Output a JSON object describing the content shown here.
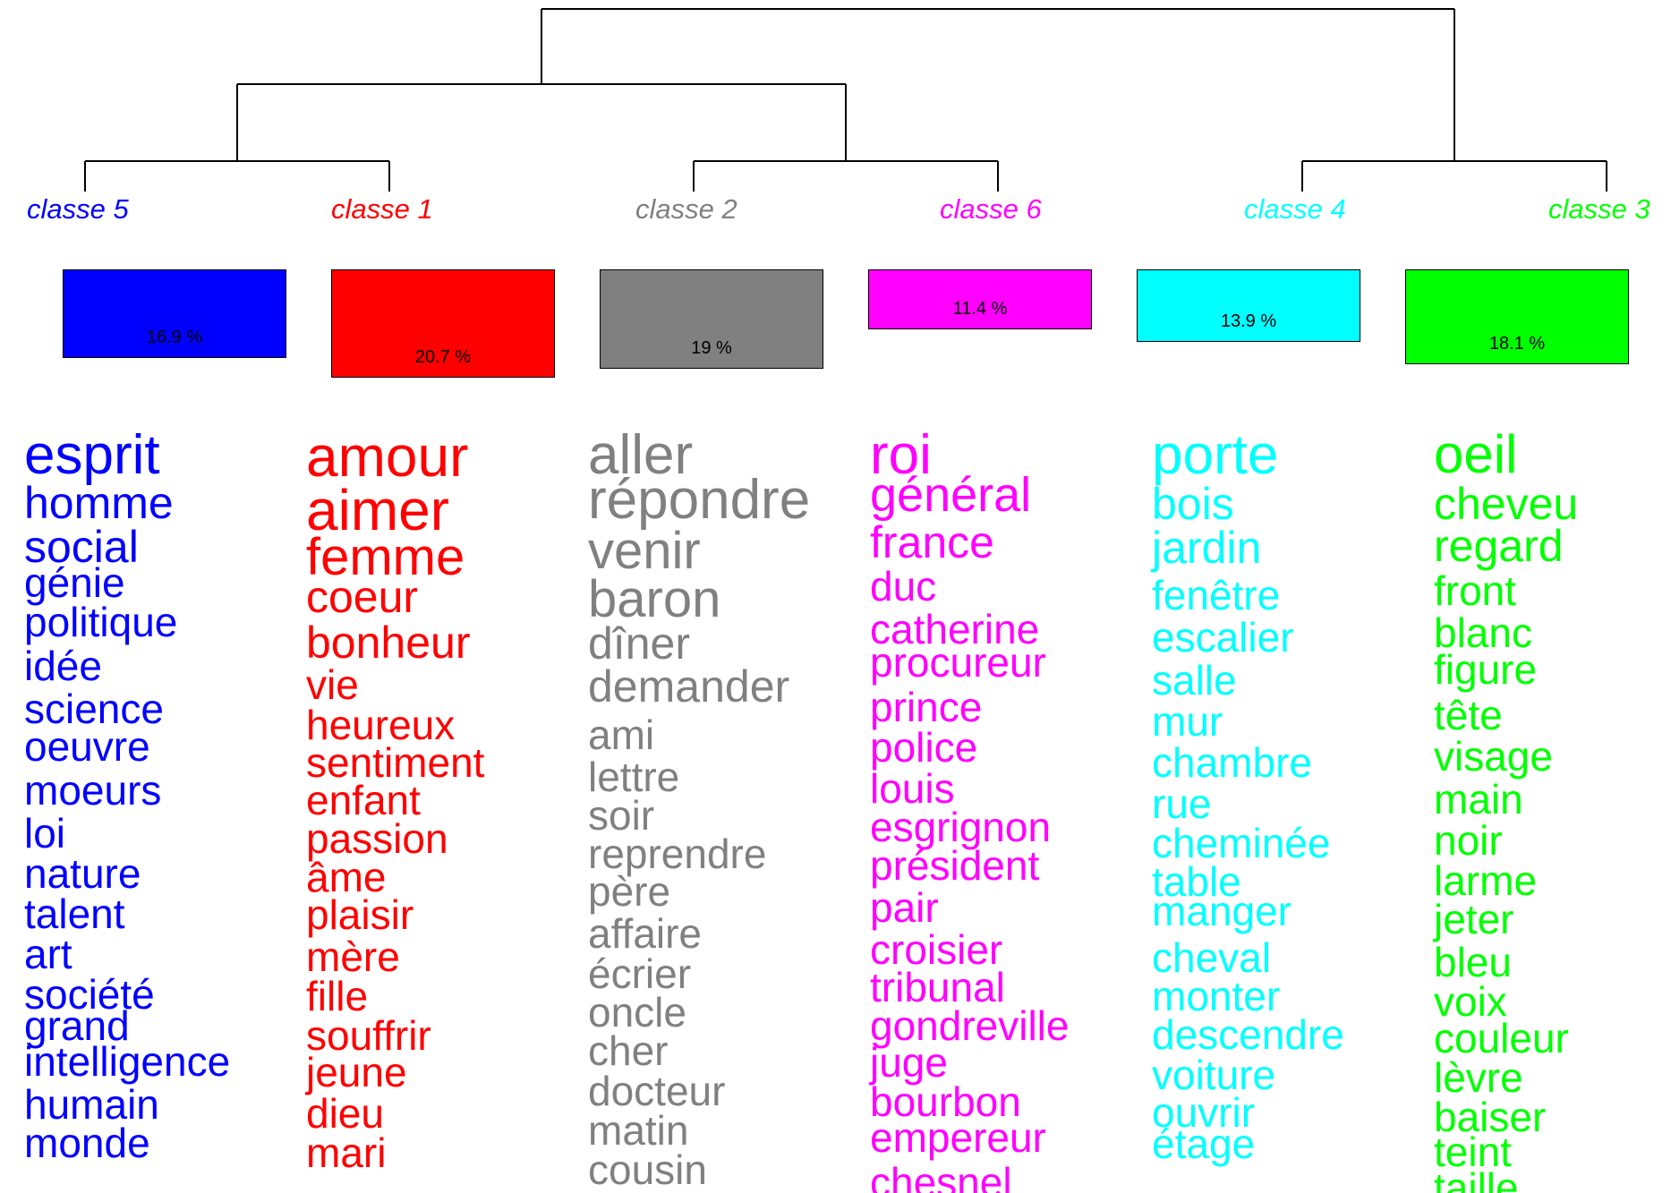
{
  "classes": [
    {
      "id": "c5",
      "label": "classe  5",
      "percent": "16.9 %",
      "share": 16.9,
      "color": "#0000FF",
      "words": [
        "esprit",
        "homme",
        "social",
        "génie",
        "politique",
        "idée",
        "science",
        "oeuvre",
        "moeurs",
        "loi",
        "nature",
        "talent",
        "art",
        "société",
        "grand",
        "intelligence",
        "humain",
        "monde"
      ]
    },
    {
      "id": "c1",
      "label": "classe  1",
      "percent": "20.7 %",
      "share": 20.7,
      "color": "#FF0000",
      "words": [
        "amour",
        "aimer",
        "femme",
        "coeur",
        "bonheur",
        "vie",
        "heureux",
        "sentiment",
        "enfant",
        "passion",
        "âme",
        "plaisir",
        "mère",
        "fille",
        "souffrir",
        "jeune",
        "dieu",
        "mari"
      ]
    },
    {
      "id": "c2",
      "label": "classe  2",
      "percent": "19 %",
      "share": 19.0,
      "color": "#808080",
      "words": [
        "aller",
        "répondre",
        "venir",
        "baron",
        "dîner",
        "demander",
        "ami",
        "lettre",
        "soir",
        "reprendre",
        "père",
        "affaire",
        "écrier",
        "oncle",
        "cher",
        "docteur",
        "matin",
        "cousin"
      ]
    },
    {
      "id": "c6",
      "label": "classe  6",
      "percent": "11.4 %",
      "share": 11.4,
      "color": "#FF00FF",
      "words": [
        "roi",
        "général",
        "france",
        "duc",
        "catherine",
        "procureur",
        "prince",
        "police",
        "louis",
        "esgrignon",
        "président",
        "pair",
        "croisier",
        "tribunal",
        "gondreville",
        "juge",
        "bourbon",
        "empereur",
        "chesnel"
      ]
    },
    {
      "id": "c4",
      "label": "classe  4",
      "percent": "13.9 %",
      "share": 13.9,
      "color": "#00FFFF",
      "words": [
        "porte",
        "bois",
        "jardin",
        "fenêtre",
        "escalier",
        "salle",
        "mur",
        "chambre",
        "rue",
        "cheminée",
        "table",
        "manger",
        "cheval",
        "monter",
        "descendre",
        "voiture",
        "ouvrir",
        "étage"
      ]
    },
    {
      "id": "c3",
      "label": "classe  3",
      "percent": "18.1 %",
      "share": 18.1,
      "color": "#00FF00",
      "words": [
        "oeil",
        "cheveu",
        "regard",
        "front",
        "blanc",
        "figure",
        "tête",
        "visage",
        "main",
        "noir",
        "larme",
        "jeter",
        "bleu",
        "voix",
        "couleur",
        "lèvre",
        "baiser",
        "teint",
        "taille"
      ]
    }
  ]
}
